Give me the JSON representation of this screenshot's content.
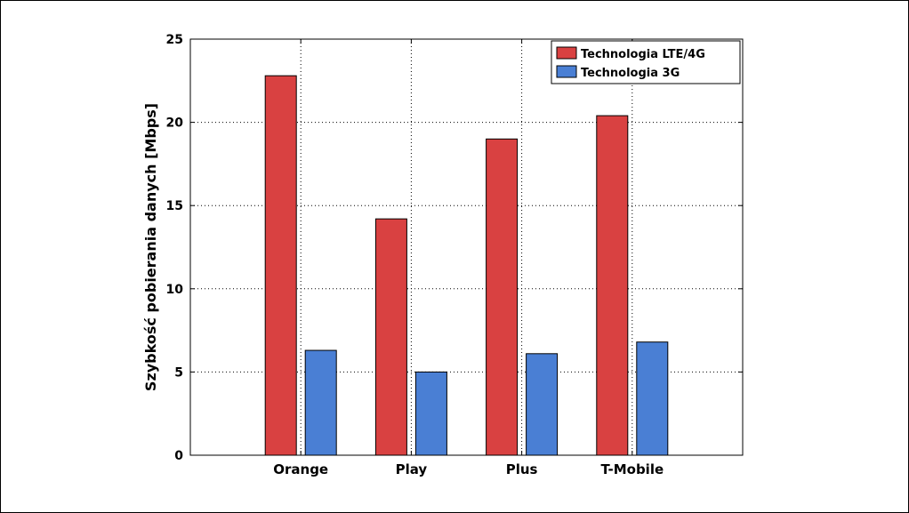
{
  "chart_data": {
    "type": "bar",
    "title": "",
    "xlabel": "",
    "ylabel": "Szybkość pobierania danych [Mbps]",
    "categories": [
      "Orange",
      "Play",
      "Plus",
      "T-Mobile"
    ],
    "series": [
      {
        "name": "Technologia LTE/4G",
        "values": [
          22.8,
          14.2,
          19.0,
          20.4
        ],
        "color": "#d94141"
      },
      {
        "name": "Technologia 3G",
        "values": [
          6.3,
          5.0,
          6.1,
          6.8
        ],
        "color": "#4a7fd4"
      }
    ],
    "ylim": [
      0,
      25
    ],
    "yticks": [
      "0",
      "5",
      "10",
      "15",
      "20",
      "25"
    ],
    "grid": true,
    "legend_position": "top-right"
  }
}
